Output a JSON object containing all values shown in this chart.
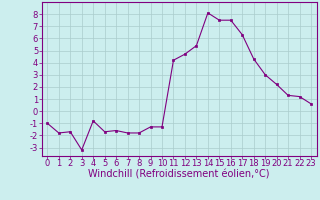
{
  "x": [
    0,
    1,
    2,
    3,
    4,
    5,
    6,
    7,
    8,
    9,
    10,
    11,
    12,
    13,
    14,
    15,
    16,
    17,
    18,
    19,
    20,
    21,
    22,
    23
  ],
  "y": [
    -1.0,
    -1.8,
    -1.7,
    -3.2,
    -0.8,
    -1.7,
    -1.6,
    -1.8,
    -1.8,
    -1.3,
    -1.3,
    4.2,
    4.7,
    5.4,
    8.1,
    7.5,
    7.5,
    6.3,
    4.3,
    3.0,
    2.2,
    1.3,
    1.2,
    0.6
  ],
  "line_color": "#800080",
  "marker_color": "#800080",
  "bg_color": "#cceeee",
  "grid_color": "#aacccc",
  "xlabel": "Windchill (Refroidissement éolien,°C)",
  "xlim": [
    -0.5,
    23.5
  ],
  "ylim": [
    -3.7,
    9.0
  ],
  "yticks": [
    -3,
    -2,
    -1,
    0,
    1,
    2,
    3,
    4,
    5,
    6,
    7,
    8
  ],
  "xticks": [
    0,
    1,
    2,
    3,
    4,
    5,
    6,
    7,
    8,
    9,
    10,
    11,
    12,
    13,
    14,
    15,
    16,
    17,
    18,
    19,
    20,
    21,
    22,
    23
  ],
  "axis_color": "#800080",
  "tick_color": "#800080",
  "font_size": 6.0,
  "xlabel_font_size": 7.0
}
